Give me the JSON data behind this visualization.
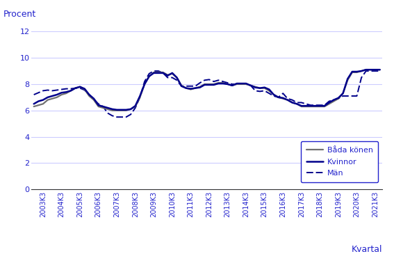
{
  "ylabel": "Procent",
  "xlabel": "Kvartal",
  "ylim": [
    0,
    12
  ],
  "yticks": [
    0,
    2,
    4,
    6,
    8,
    10,
    12
  ],
  "background_color": "#ffffff",
  "grid_color": "#ccccff",
  "text_color": "#2222cc",
  "line_color_bada": "#707070",
  "line_color_kvinnor": "#00008B",
  "line_color_man": "#00008B",
  "legend_labels": [
    "Båda könen",
    "Kvinnor",
    "Män"
  ],
  "bada_konen": [
    6.3,
    6.4,
    6.5,
    6.8,
    6.9,
    7.0,
    7.2,
    7.3,
    7.5,
    7.7,
    7.8,
    7.6,
    7.1,
    6.8,
    6.3,
    6.2,
    6.1,
    6.0,
    6.0,
    6.0,
    6.0,
    6.1,
    6.3,
    7.0,
    8.0,
    8.6,
    8.9,
    8.9,
    8.9,
    8.7,
    8.8,
    8.5,
    7.9,
    7.7,
    7.6,
    7.7,
    7.8,
    8.0,
    8.0,
    8.0,
    8.1,
    8.1,
    8.0,
    7.9,
    8.0,
    8.0,
    8.0,
    7.9,
    7.8,
    7.7,
    7.7,
    7.5,
    7.2,
    7.0,
    6.9,
    6.8,
    6.6,
    6.5,
    6.3,
    6.3,
    6.3,
    6.3,
    6.3,
    6.3,
    6.5,
    6.7,
    6.9,
    7.3,
    8.3,
    8.9,
    8.9,
    9.0,
    9.1,
    9.1,
    9.1,
    9.1
  ],
  "kvinnor": [
    6.5,
    6.7,
    6.8,
    7.0,
    7.1,
    7.2,
    7.35,
    7.4,
    7.5,
    7.7,
    7.8,
    7.65,
    7.2,
    6.9,
    6.4,
    6.3,
    6.2,
    6.1,
    6.05,
    6.05,
    6.05,
    6.1,
    6.35,
    7.1,
    8.0,
    8.6,
    8.85,
    8.85,
    8.85,
    8.65,
    8.85,
    8.5,
    7.85,
    7.7,
    7.65,
    7.7,
    7.75,
    7.95,
    7.95,
    7.95,
    8.05,
    8.05,
    8.0,
    7.9,
    8.05,
    8.05,
    8.05,
    7.9,
    7.75,
    7.7,
    7.75,
    7.6,
    7.2,
    7.0,
    6.95,
    6.8,
    6.6,
    6.5,
    6.35,
    6.35,
    6.35,
    6.35,
    6.35,
    6.35,
    6.6,
    6.8,
    6.95,
    7.3,
    8.4,
    8.95,
    8.95,
    9.0,
    9.1,
    9.1,
    9.1,
    9.1
  ],
  "man": [
    7.2,
    7.35,
    7.5,
    7.55,
    7.5,
    7.55,
    7.6,
    7.65,
    7.65,
    7.7,
    7.7,
    7.55,
    7.2,
    6.85,
    6.5,
    6.3,
    5.8,
    5.6,
    5.5,
    5.5,
    5.5,
    5.7,
    6.2,
    7.0,
    8.2,
    8.8,
    9.0,
    9.0,
    8.85,
    8.5,
    8.5,
    8.3,
    7.85,
    7.85,
    7.85,
    7.85,
    8.1,
    8.3,
    8.35,
    8.2,
    8.3,
    8.2,
    8.1,
    8.0,
    8.0,
    8.0,
    8.0,
    7.9,
    7.5,
    7.45,
    7.5,
    7.3,
    7.1,
    7.0,
    7.3,
    6.9,
    6.8,
    6.6,
    6.6,
    6.5,
    6.4,
    6.4,
    6.4,
    6.4,
    6.7,
    6.8,
    6.9,
    7.1,
    7.1,
    7.1,
    7.1,
    8.5,
    9.0,
    9.0,
    9.0,
    9.0
  ]
}
